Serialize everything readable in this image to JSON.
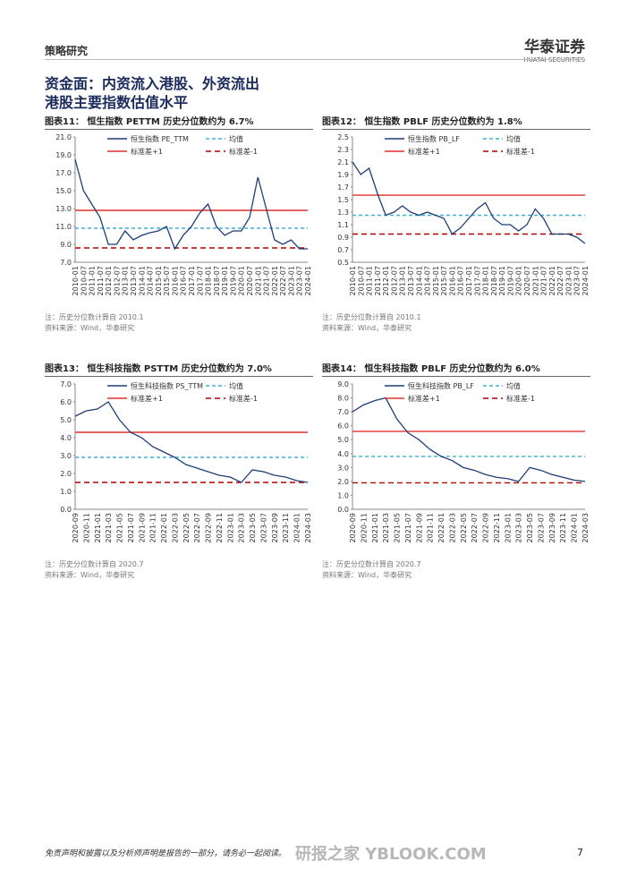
{
  "header": {
    "section": "策略研究",
    "logo_cn": "华泰证券",
    "logo_en": "HUATAI SECURITIES"
  },
  "title": {
    "line1": "资金面：内资流入港股、外资流出",
    "line2": "港股主要指数估值水平"
  },
  "chart_data": [
    {
      "type": "line",
      "caption": "图表11：  恒生指数 PETTM 历史分位数约为 6.7%",
      "note": "注：历史分位数计算自 2010.1",
      "source": "资料来源：Wind，华泰研究",
      "categories": [
        "2010-01",
        "2010-07",
        "2011-01",
        "2011-07",
        "2012-01",
        "2012-07",
        "2013-01",
        "2013-07",
        "2014-01",
        "2014-07",
        "2015-01",
        "2015-07",
        "2016-01",
        "2016-07",
        "2017-01",
        "2017-07",
        "2018-01",
        "2018-07",
        "2019-01",
        "2019-07",
        "2020-01",
        "2020-07",
        "2021-01",
        "2021-07",
        "2022-01",
        "2022-07",
        "2023-01",
        "2023-07",
        "2024-01"
      ],
      "series": [
        {
          "name": "恒生指数 PE_TTM",
          "color": "#1f3d7a",
          "values": [
            18.5,
            15,
            13.5,
            12,
            9,
            9,
            10.5,
            9.5,
            10,
            10.3,
            10.5,
            11,
            8.5,
            10,
            11,
            12.5,
            13.5,
            11,
            10,
            10.5,
            10.5,
            12,
            16.5,
            13,
            9.5,
            9,
            9.5,
            8.5,
            8.5
          ]
        }
      ],
      "reference_lines": [
        {
          "name": "均值",
          "value": 10.8,
          "color": "#3fb0d8",
          "dash": "4,3"
        },
        {
          "name": "标准差+1",
          "value": 12.8,
          "color": "#e03030",
          "dash": "none"
        },
        {
          "name": "标准差-1",
          "value": 8.6,
          "color": "#b00000",
          "dash": "6,4"
        }
      ],
      "ylim": [
        7,
        21
      ],
      "yticks": [
        {
          "value": 7,
          "label": "7.0"
        },
        {
          "value": 9,
          "label": "9.0"
        },
        {
          "value": 11,
          "label": "11.0"
        },
        {
          "value": 13,
          "label": "13.0"
        },
        {
          "value": 15,
          "label": "15.0"
        },
        {
          "value": 17,
          "label": "17.0"
        },
        {
          "value": 19,
          "label": "19.0"
        },
        {
          "value": 21,
          "label": "21.0"
        }
      ]
    },
    {
      "type": "line",
      "caption": "图表12：  恒生指数 PBLF 历史分位数约为 1.8%",
      "note": "注：历史分位数计算自 2010.1",
      "source": "资料来源：Wind，华泰研究",
      "categories": [
        "2010-01",
        "2010-07",
        "2011-01",
        "2011-07",
        "2012-01",
        "2012-07",
        "2013-01",
        "2013-07",
        "2014-01",
        "2014-07",
        "2015-01",
        "2015-07",
        "2016-01",
        "2016-07",
        "2017-01",
        "2017-07",
        "2018-01",
        "2018-07",
        "2019-01",
        "2019-07",
        "2020-01",
        "2020-07",
        "2021-01",
        "2021-07",
        "2022-01",
        "2022-07",
        "2023-01",
        "2023-07",
        "2024-01"
      ],
      "series": [
        {
          "name": "恒生指数 PB_LF",
          "color": "#1f3d7a",
          "values": [
            2.1,
            1.9,
            2.0,
            1.6,
            1.25,
            1.3,
            1.4,
            1.3,
            1.25,
            1.3,
            1.25,
            1.2,
            0.95,
            1.05,
            1.2,
            1.35,
            1.45,
            1.2,
            1.1,
            1.1,
            1.0,
            1.1,
            1.35,
            1.2,
            0.95,
            0.95,
            0.95,
            0.9,
            0.8
          ]
        }
      ],
      "reference_lines": [
        {
          "name": "均值",
          "value": 1.25,
          "color": "#3fb0d8",
          "dash": "4,3"
        },
        {
          "name": "标准差+1",
          "value": 1.57,
          "color": "#e03030",
          "dash": "none"
        },
        {
          "name": "标准差-1",
          "value": 0.95,
          "color": "#b00000",
          "dash": "6,4"
        }
      ],
      "ylim": [
        0.5,
        2.5
      ],
      "yticks": [
        0.5,
        0.7,
        0.9,
        1.1,
        1.3,
        1.5,
        1.7,
        1.9,
        2.1,
        2.3,
        2.5
      ]
    },
    {
      "type": "line",
      "caption": "图表13：  恒生科技指数 PSTTM 历史分位数约为 7.0%",
      "note": "注：历史分位数计算自 2020.7",
      "source": "资料来源：Wind，华泰研究",
      "categories": [
        "2020-09",
        "2020-11",
        "2021-01",
        "2021-03",
        "2021-05",
        "2021-07",
        "2021-09",
        "2021-11",
        "2022-01",
        "2022-03",
        "2022-05",
        "2022-07",
        "2022-09",
        "2022-11",
        "2023-01",
        "2023-03",
        "2023-05",
        "2023-07",
        "2023-09",
        "2023-11",
        "2024-01",
        "2024-03"
      ],
      "series": [
        {
          "name": "恒生科技指数 PS_TTM",
          "color": "#1f3d7a",
          "values": [
            5.2,
            5.5,
            5.6,
            6.0,
            5.0,
            4.3,
            4.0,
            3.5,
            3.2,
            2.9,
            2.5,
            2.3,
            2.1,
            1.9,
            1.8,
            1.5,
            2.2,
            2.1,
            1.9,
            1.8,
            1.6,
            1.5
          ]
        }
      ],
      "reference_lines": [
        {
          "name": "均值",
          "value": 2.9,
          "color": "#3fb0d8",
          "dash": "4,3"
        },
        {
          "name": "标准差+1",
          "value": 4.3,
          "color": "#e03030",
          "dash": "none"
        },
        {
          "name": "标准差-1",
          "value": 1.5,
          "color": "#b00000",
          "dash": "6,4"
        }
      ],
      "ylim": [
        0,
        7
      ],
      "yticks": [
        {
          "value": 0,
          "label": "0.0"
        },
        {
          "value": 1,
          "label": "1.0"
        },
        {
          "value": 2,
          "label": "2.0"
        },
        {
          "value": 3,
          "label": "3.0"
        },
        {
          "value": 4,
          "label": "4.0"
        },
        {
          "value": 5,
          "label": "5.0"
        },
        {
          "value": 6,
          "label": "6.0"
        },
        {
          "value": 7,
          "label": "7.0"
        }
      ]
    },
    {
      "type": "line",
      "caption": "图表14：  恒生科技指数 PBLF 历史分位数约为 6.0%",
      "note": "注：历史分位数计算自 2020.7",
      "source": "资料来源：Wind，华泰研究",
      "categories": [
        "2020-09",
        "2020-11",
        "2021-01",
        "2021-03",
        "2021-05",
        "2021-07",
        "2021-09",
        "2021-11",
        "2022-01",
        "2022-03",
        "2022-05",
        "2022-07",
        "2022-09",
        "2022-11",
        "2023-01",
        "2023-03",
        "2023-05",
        "2023-07",
        "2023-09",
        "2023-11",
        "2024-01",
        "2024-03"
      ],
      "series": [
        {
          "name": "恒生科技指数 PB_LF",
          "color": "#1f3d7a",
          "values": [
            7,
            7.5,
            7.8,
            8.0,
            6.5,
            5.5,
            5.0,
            4.3,
            3.8,
            3.5,
            3.0,
            2.8,
            2.5,
            2.3,
            2.2,
            2.0,
            3.0,
            2.8,
            2.5,
            2.3,
            2.1,
            2.0
          ]
        }
      ],
      "reference_lines": [
        {
          "name": "均值",
          "value": 3.8,
          "color": "#3fb0d8",
          "dash": "4,3"
        },
        {
          "name": "标准差+1",
          "value": 5.6,
          "color": "#e03030",
          "dash": "none"
        },
        {
          "name": "标准差-1",
          "value": 1.9,
          "color": "#b00000",
          "dash": "6,4"
        }
      ],
      "ylim": [
        0,
        9
      ],
      "yticks": [
        {
          "value": 0,
          "label": "0.0"
        },
        {
          "value": 1,
          "label": "1.0"
        },
        {
          "value": 2,
          "label": "2.0"
        },
        {
          "value": 3,
          "label": "3.0"
        },
        {
          "value": 4,
          "label": "4.0"
        },
        {
          "value": 5,
          "label": "5.0"
        },
        {
          "value": 6,
          "label": "6.0"
        },
        {
          "value": 7,
          "label": "7.0"
        },
        {
          "value": 8,
          "label": "8.0"
        },
        {
          "value": 9,
          "label": "9.0"
        }
      ]
    }
  ],
  "footer": {
    "disclaimer": "免责声明和披露以及分析师声明是报告的一部分，请务必一起阅读。",
    "page": "7",
    "watermark": "研报之家 YBLOOK.COM"
  }
}
